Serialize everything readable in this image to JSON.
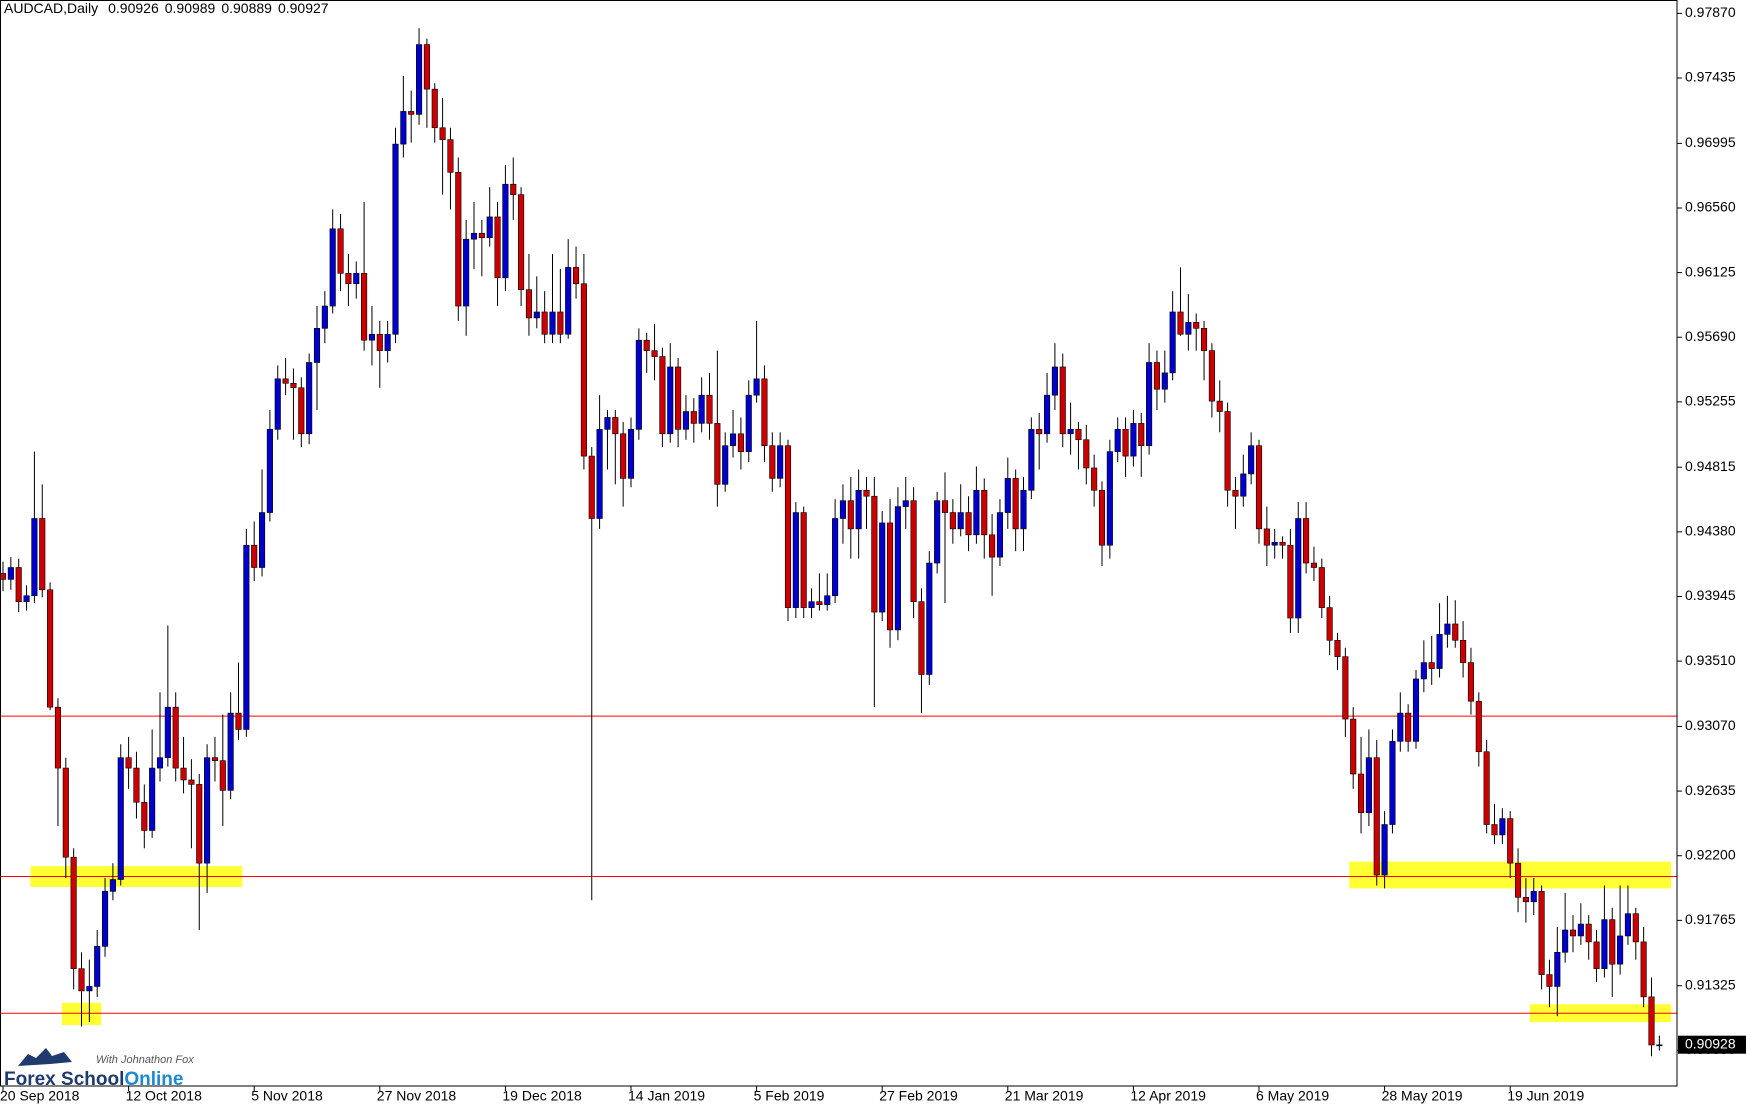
{
  "chart_data": {
    "type": "candlestick",
    "title": "AUDCAD,Daily",
    "colors": {
      "up": "#0000cc",
      "down": "#cc0000",
      "wick": "#000000",
      "background": "#ffffff"
    },
    "ylim": [
      0.9065,
      0.9796
    ],
    "yticks": [
      {
        "value": 0.9787,
        "label": "0.97870"
      },
      {
        "value": 0.97435,
        "label": "0.97435"
      },
      {
        "value": 0.96995,
        "label": "0.96995"
      },
      {
        "value": 0.9656,
        "label": "0.96560"
      },
      {
        "value": 0.96125,
        "label": "0.96125"
      },
      {
        "value": 0.9569,
        "label": "0.95690"
      },
      {
        "value": 0.95255,
        "label": "0.95255"
      },
      {
        "value": 0.94815,
        "label": "0.94815"
      },
      {
        "value": 0.9438,
        "label": "0.94380"
      },
      {
        "value": 0.93945,
        "label": "0.93945"
      },
      {
        "value": 0.9351,
        "label": "0.93510"
      },
      {
        "value": 0.9307,
        "label": "0.93070"
      },
      {
        "value": 0.92635,
        "label": "0.92635"
      },
      {
        "value": 0.922,
        "label": "0.92200"
      },
      {
        "value": 0.91765,
        "label": "0.91765"
      },
      {
        "value": 0.91325,
        "label": "0.91325"
      },
      {
        "value": 0.9089,
        "label": "0.90890"
      }
    ],
    "xticks": [
      {
        "value": 0,
        "label": "20 Sep 2018"
      },
      {
        "value": 16,
        "label": "12 Oct 2018"
      },
      {
        "value": 32,
        "label": "5 Nov 2018"
      },
      {
        "value": 48,
        "label": "27 Nov 2018"
      },
      {
        "value": 64,
        "label": "19 Dec 2018"
      },
      {
        "value": 80,
        "label": "14 Jan 2019"
      },
      {
        "value": 96,
        "label": "5 Feb 2019"
      },
      {
        "value": 112,
        "label": "27 Feb 2019"
      },
      {
        "value": 128,
        "label": "21 Mar 2019"
      },
      {
        "value": 144,
        "label": "12 Apr 2019"
      },
      {
        "value": 160,
        "label": "6 May 2019"
      },
      {
        "value": 176,
        "label": "28 May 2019"
      },
      {
        "value": 192,
        "label": "19 Jun 2019"
      }
    ],
    "hlines": {
      "color": "#ff0000",
      "values": [
        0.9314,
        0.9206,
        0.9114
      ]
    },
    "zone_color": "#ffff33",
    "zones": [
      {
        "start": 4,
        "end": 30,
        "ylim": [
          0.9199,
          0.9213
        ]
      },
      {
        "start": 8,
        "end": 12,
        "ylim": [
          0.9106,
          0.9121
        ]
      },
      {
        "start": 172,
        "end": 212,
        "ylim": [
          0.9198,
          0.9216
        ]
      },
      {
        "start": 195,
        "end": 212,
        "ylim": [
          0.9108,
          0.912
        ]
      }
    ],
    "current_price": {
      "value": 0.90928,
      "label": "0.90928"
    },
    "watermark": {
      "tagline": "With Johnathon Fox",
      "brand": "Forex School",
      "brand_suffix": "Online"
    },
    "candles": [
      [
        0.941,
        0.9418,
        0.9398,
        0.9406
      ],
      [
        0.9406,
        0.9421,
        0.9399,
        0.9414
      ],
      [
        0.9414,
        0.942,
        0.9384,
        0.9391
      ],
      [
        0.9391,
        0.9402,
        0.9385,
        0.9395
      ],
      [
        0.9395,
        0.9492,
        0.939,
        0.9447
      ],
      [
        0.9447,
        0.947,
        0.9394,
        0.9399
      ],
      [
        0.9399,
        0.9404,
        0.9318,
        0.932
      ],
      [
        0.932,
        0.9326,
        0.924,
        0.9279
      ],
      [
        0.9279,
        0.9286,
        0.9205,
        0.9219
      ],
      [
        0.9219,
        0.9225,
        0.913,
        0.9144
      ],
      [
        0.9144,
        0.9155,
        0.9105,
        0.9129
      ],
      [
        0.9129,
        0.915,
        0.9108,
        0.9132
      ],
      [
        0.9132,
        0.917,
        0.9125,
        0.9159
      ],
      [
        0.9159,
        0.9205,
        0.9152,
        0.9196
      ],
      [
        0.9196,
        0.9215,
        0.919,
        0.9204
      ],
      [
        0.9204,
        0.9295,
        0.92,
        0.9286
      ],
      [
        0.9286,
        0.93,
        0.9265,
        0.9279
      ],
      [
        0.9279,
        0.929,
        0.9245,
        0.9256
      ],
      [
        0.9256,
        0.9268,
        0.9225,
        0.9237
      ],
      [
        0.9237,
        0.9305,
        0.9232,
        0.9279
      ],
      [
        0.9279,
        0.933,
        0.927,
        0.9286
      ],
      [
        0.9286,
        0.9375,
        0.928,
        0.932
      ],
      [
        0.932,
        0.933,
        0.927,
        0.9279
      ],
      [
        0.9279,
        0.93,
        0.9262,
        0.9271
      ],
      [
        0.9271,
        0.9285,
        0.9225,
        0.9268
      ],
      [
        0.9268,
        0.9275,
        0.917,
        0.9215
      ],
      [
        0.9215,
        0.9295,
        0.9195,
        0.9286
      ],
      [
        0.9286,
        0.93,
        0.927,
        0.9284
      ],
      [
        0.9284,
        0.9315,
        0.924,
        0.9264
      ],
      [
        0.9264,
        0.933,
        0.9258,
        0.9316
      ],
      [
        0.9316,
        0.935,
        0.9298,
        0.9305
      ],
      [
        0.9305,
        0.944,
        0.93,
        0.9429
      ],
      [
        0.9429,
        0.9445,
        0.9405,
        0.9414
      ],
      [
        0.9414,
        0.948,
        0.9408,
        0.9451
      ],
      [
        0.9451,
        0.952,
        0.9445,
        0.9507
      ],
      [
        0.9507,
        0.955,
        0.95,
        0.9541
      ],
      [
        0.9541,
        0.9555,
        0.953,
        0.9538
      ],
      [
        0.9538,
        0.9548,
        0.95,
        0.9535
      ],
      [
        0.9535,
        0.9542,
        0.9495,
        0.9504
      ],
      [
        0.9504,
        0.9558,
        0.9497,
        0.9552
      ],
      [
        0.9552,
        0.959,
        0.952,
        0.9575
      ],
      [
        0.9575,
        0.96,
        0.9565,
        0.959
      ],
      [
        0.959,
        0.9655,
        0.9585,
        0.9642
      ],
      [
        0.9642,
        0.9652,
        0.96,
        0.9612
      ],
      [
        0.9612,
        0.9625,
        0.959,
        0.9605
      ],
      [
        0.9605,
        0.962,
        0.9595,
        0.9612
      ],
      [
        0.9612,
        0.966,
        0.956,
        0.9567
      ],
      [
        0.9567,
        0.959,
        0.955,
        0.9571
      ],
      [
        0.9571,
        0.958,
        0.9535,
        0.956
      ],
      [
        0.956,
        0.958,
        0.9552,
        0.9571
      ],
      [
        0.9571,
        0.971,
        0.9565,
        0.9699
      ],
      [
        0.9699,
        0.9745,
        0.969,
        0.9721
      ],
      [
        0.9721,
        0.9735,
        0.97,
        0.9719
      ],
      [
        0.9719,
        0.9777,
        0.9712,
        0.9766
      ],
      [
        0.9766,
        0.977,
        0.971,
        0.9736
      ],
      [
        0.9736,
        0.974,
        0.97,
        0.971
      ],
      [
        0.971,
        0.973,
        0.9665,
        0.9702
      ],
      [
        0.9702,
        0.971,
        0.9655,
        0.968
      ],
      [
        0.968,
        0.969,
        0.958,
        0.959
      ],
      [
        0.959,
        0.9648,
        0.957,
        0.9635
      ],
      [
        0.9635,
        0.966,
        0.9615,
        0.9639
      ],
      [
        0.9639,
        0.9648,
        0.961,
        0.9636
      ],
      [
        0.9636,
        0.967,
        0.963,
        0.965
      ],
      [
        0.965,
        0.966,
        0.959,
        0.9609
      ],
      [
        0.9609,
        0.9685,
        0.96,
        0.9672
      ],
      [
        0.9672,
        0.969,
        0.9648,
        0.9665
      ],
      [
        0.9665,
        0.967,
        0.959,
        0.9601
      ],
      [
        0.9601,
        0.9625,
        0.957,
        0.9582
      ],
      [
        0.9582,
        0.961,
        0.9575,
        0.9586
      ],
      [
        0.9586,
        0.96,
        0.9565,
        0.9571
      ],
      [
        0.9571,
        0.9625,
        0.9565,
        0.9586
      ],
      [
        0.9586,
        0.9615,
        0.9565,
        0.9571
      ],
      [
        0.9571,
        0.9635,
        0.9568,
        0.9616
      ],
      [
        0.9616,
        0.963,
        0.9595,
        0.9605
      ],
      [
        0.9605,
        0.9625,
        0.948,
        0.9489
      ],
      [
        0.9489,
        0.9495,
        0.919,
        0.9447
      ],
      [
        0.9447,
        0.953,
        0.944,
        0.9507
      ],
      [
        0.9507,
        0.952,
        0.948,
        0.9515
      ],
      [
        0.9515,
        0.952,
        0.947,
        0.9504
      ],
      [
        0.9504,
        0.9512,
        0.9455,
        0.9474
      ],
      [
        0.9474,
        0.9515,
        0.9468,
        0.9507
      ],
      [
        0.9507,
        0.9575,
        0.95,
        0.9567
      ],
      [
        0.9567,
        0.9572,
        0.9545,
        0.956
      ],
      [
        0.956,
        0.9578,
        0.954,
        0.9556
      ],
      [
        0.9556,
        0.9562,
        0.9495,
        0.9504
      ],
      [
        0.9504,
        0.9565,
        0.9498,
        0.9549
      ],
      [
        0.9549,
        0.9555,
        0.9495,
        0.9507
      ],
      [
        0.9507,
        0.953,
        0.95,
        0.9519
      ],
      [
        0.9519,
        0.9528,
        0.9498,
        0.9511
      ],
      [
        0.9511,
        0.9542,
        0.9505,
        0.953
      ],
      [
        0.953,
        0.9545,
        0.95,
        0.9511
      ],
      [
        0.9511,
        0.956,
        0.9455,
        0.947
      ],
      [
        0.947,
        0.9505,
        0.9465,
        0.9496
      ],
      [
        0.9496,
        0.952,
        0.9488,
        0.9504
      ],
      [
        0.9504,
        0.9515,
        0.948,
        0.9492
      ],
      [
        0.9492,
        0.954,
        0.9485,
        0.953
      ],
      [
        0.953,
        0.958,
        0.9525,
        0.9541
      ],
      [
        0.9541,
        0.955,
        0.9485,
        0.9496
      ],
      [
        0.9496,
        0.9505,
        0.9465,
        0.9474
      ],
      [
        0.9474,
        0.9505,
        0.9468,
        0.9496
      ],
      [
        0.9496,
        0.95,
        0.9378,
        0.9387
      ],
      [
        0.9387,
        0.9458,
        0.938,
        0.9451
      ],
      [
        0.9451,
        0.9455,
        0.938,
        0.9387
      ],
      [
        0.9387,
        0.94,
        0.938,
        0.9391
      ],
      [
        0.9391,
        0.941,
        0.9385,
        0.9389
      ],
      [
        0.9389,
        0.941,
        0.9385,
        0.9395
      ],
      [
        0.9395,
        0.946,
        0.939,
        0.9447
      ],
      [
        0.9447,
        0.947,
        0.943,
        0.9459
      ],
      [
        0.9459,
        0.9475,
        0.942,
        0.944
      ],
      [
        0.944,
        0.948,
        0.942,
        0.9466
      ],
      [
        0.9466,
        0.9475,
        0.944,
        0.9462
      ],
      [
        0.9462,
        0.9475,
        0.932,
        0.9384
      ],
      [
        0.9384,
        0.9452,
        0.9378,
        0.9444
      ],
      [
        0.9444,
        0.946,
        0.936,
        0.9372
      ],
      [
        0.9372,
        0.9468,
        0.9365,
        0.9455
      ],
      [
        0.9455,
        0.9475,
        0.944,
        0.9459
      ],
      [
        0.9459,
        0.9468,
        0.938,
        0.9391
      ],
      [
        0.9391,
        0.94,
        0.9316,
        0.9342
      ],
      [
        0.9342,
        0.9425,
        0.9335,
        0.9417
      ],
      [
        0.9417,
        0.9465,
        0.941,
        0.9459
      ],
      [
        0.9459,
        0.9478,
        0.939,
        0.9451
      ],
      [
        0.9451,
        0.946,
        0.943,
        0.944
      ],
      [
        0.944,
        0.947,
        0.9435,
        0.9451
      ],
      [
        0.9451,
        0.9462,
        0.9425,
        0.9436
      ],
      [
        0.9436,
        0.9482,
        0.943,
        0.9466
      ],
      [
        0.9466,
        0.9474,
        0.942,
        0.9436
      ],
      [
        0.9436,
        0.945,
        0.9395,
        0.9421
      ],
      [
        0.9421,
        0.946,
        0.9415,
        0.9451
      ],
      [
        0.9451,
        0.9488,
        0.944,
        0.9474
      ],
      [
        0.9474,
        0.948,
        0.9425,
        0.944
      ],
      [
        0.944,
        0.9475,
        0.9425,
        0.9466
      ],
      [
        0.9466,
        0.9515,
        0.946,
        0.9507
      ],
      [
        0.9507,
        0.9518,
        0.948,
        0.9504
      ],
      [
        0.9504,
        0.9545,
        0.9498,
        0.953
      ],
      [
        0.953,
        0.9565,
        0.952,
        0.9549
      ],
      [
        0.9549,
        0.9558,
        0.9495,
        0.9504
      ],
      [
        0.9504,
        0.9525,
        0.949,
        0.9507
      ],
      [
        0.9507,
        0.9512,
        0.948,
        0.95
      ],
      [
        0.95,
        0.951,
        0.947,
        0.9481
      ],
      [
        0.9481,
        0.949,
        0.9455,
        0.9466
      ],
      [
        0.9466,
        0.9472,
        0.9415,
        0.9429
      ],
      [
        0.9429,
        0.95,
        0.942,
        0.9492
      ],
      [
        0.9492,
        0.9515,
        0.9485,
        0.9507
      ],
      [
        0.9507,
        0.9515,
        0.9475,
        0.9489
      ],
      [
        0.9489,
        0.952,
        0.9482,
        0.9511
      ],
      [
        0.9511,
        0.9518,
        0.9475,
        0.9496
      ],
      [
        0.9496,
        0.9565,
        0.949,
        0.9552
      ],
      [
        0.9552,
        0.956,
        0.952,
        0.9534
      ],
      [
        0.9534,
        0.956,
        0.9525,
        0.9545
      ],
      [
        0.9545,
        0.96,
        0.954,
        0.9586
      ],
      [
        0.9586,
        0.9616,
        0.957,
        0.9571
      ],
      [
        0.9571,
        0.9598,
        0.956,
        0.9579
      ],
      [
        0.9579,
        0.9585,
        0.956,
        0.9575
      ],
      [
        0.9575,
        0.958,
        0.954,
        0.956
      ],
      [
        0.956,
        0.9565,
        0.9515,
        0.9526
      ],
      [
        0.9526,
        0.954,
        0.9505,
        0.9519
      ],
      [
        0.9519,
        0.9525,
        0.9455,
        0.9466
      ],
      [
        0.9466,
        0.9475,
        0.944,
        0.9462
      ],
      [
        0.9462,
        0.949,
        0.9455,
        0.9477
      ],
      [
        0.9477,
        0.9505,
        0.947,
        0.9496
      ],
      [
        0.9496,
        0.95,
        0.943,
        0.944
      ],
      [
        0.944,
        0.9455,
        0.9415,
        0.9429
      ],
      [
        0.9429,
        0.944,
        0.942,
        0.9431
      ],
      [
        0.9431,
        0.9435,
        0.942,
        0.9429
      ],
      [
        0.9429,
        0.944,
        0.937,
        0.938
      ],
      [
        0.938,
        0.9458,
        0.937,
        0.9447
      ],
      [
        0.9447,
        0.9458,
        0.941,
        0.9417
      ],
      [
        0.9417,
        0.9428,
        0.9405,
        0.9414
      ],
      [
        0.9414,
        0.942,
        0.938,
        0.9387
      ],
      [
        0.9387,
        0.9395,
        0.9355,
        0.9365
      ],
      [
        0.9365,
        0.937,
        0.9345,
        0.9354
      ],
      [
        0.9354,
        0.936,
        0.93,
        0.9312
      ],
      [
        0.9312,
        0.932,
        0.9265,
        0.9275
      ],
      [
        0.9275,
        0.93,
        0.9235,
        0.9249
      ],
      [
        0.9249,
        0.9305,
        0.924,
        0.9286
      ],
      [
        0.9286,
        0.9298,
        0.92,
        0.9207
      ],
      [
        0.9207,
        0.925,
        0.9198,
        0.9241
      ],
      [
        0.9241,
        0.9305,
        0.9235,
        0.9297
      ],
      [
        0.9297,
        0.933,
        0.929,
        0.9316
      ],
      [
        0.9316,
        0.9322,
        0.929,
        0.9297
      ],
      [
        0.9297,
        0.9345,
        0.9292,
        0.9339
      ],
      [
        0.9339,
        0.9365,
        0.933,
        0.935
      ],
      [
        0.935,
        0.9368,
        0.9335,
        0.9346
      ],
      [
        0.9346,
        0.939,
        0.934,
        0.9369
      ],
      [
        0.9369,
        0.9395,
        0.936,
        0.9376
      ],
      [
        0.9376,
        0.9392,
        0.936,
        0.9365
      ],
      [
        0.9365,
        0.9378,
        0.934,
        0.935
      ],
      [
        0.935,
        0.936,
        0.9315,
        0.9324
      ],
      [
        0.9324,
        0.933,
        0.928,
        0.929
      ],
      [
        0.929,
        0.9298,
        0.9235,
        0.9241
      ],
      [
        0.9241,
        0.9255,
        0.9228,
        0.9234
      ],
      [
        0.9234,
        0.9252,
        0.9228,
        0.9245
      ],
      [
        0.9245,
        0.925,
        0.9205,
        0.9215
      ],
      [
        0.9215,
        0.9225,
        0.9182,
        0.9192
      ],
      [
        0.9192,
        0.9205,
        0.9175,
        0.9189
      ],
      [
        0.9189,
        0.9205,
        0.918,
        0.9196
      ],
      [
        0.9196,
        0.92,
        0.913,
        0.914
      ],
      [
        0.914,
        0.915,
        0.9118,
        0.9132
      ],
      [
        0.9132,
        0.9172,
        0.9112,
        0.9155
      ],
      [
        0.9155,
        0.9195,
        0.9148,
        0.917
      ],
      [
        0.917,
        0.918,
        0.9155,
        0.9166
      ],
      [
        0.9166,
        0.9188,
        0.916,
        0.9174
      ],
      [
        0.9174,
        0.918,
        0.915,
        0.9162
      ],
      [
        0.9162,
        0.917,
        0.9135,
        0.9144
      ],
      [
        0.9144,
        0.92,
        0.9138,
        0.9177
      ],
      [
        0.9177,
        0.9185,
        0.9125,
        0.9147
      ],
      [
        0.9147,
        0.92,
        0.914,
        0.9166
      ],
      [
        0.9166,
        0.92,
        0.916,
        0.9181
      ],
      [
        0.9181,
        0.9185,
        0.915,
        0.9162
      ],
      [
        0.9162,
        0.9172,
        0.9118,
        0.9125
      ],
      [
        0.9125,
        0.9138,
        0.9085,
        0.90926
      ],
      [
        0.90926,
        0.90989,
        0.90889,
        0.90927
      ]
    ]
  }
}
